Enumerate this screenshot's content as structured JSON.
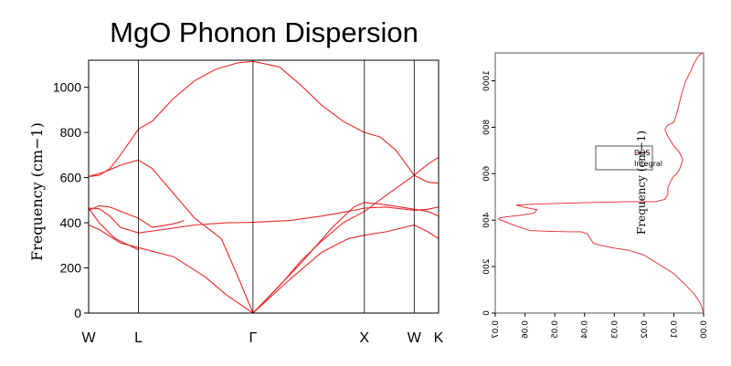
{
  "colors": {
    "line": "#e8262a",
    "axis": "#000000",
    "frame": "#555555"
  },
  "chart_data": [
    {
      "type": "line",
      "title": "MgO Phonon Dispersion",
      "ylabel": "Frequency (cm−1)",
      "xlabel": "",
      "ylim": [
        0,
        1120
      ],
      "yticks": [
        0,
        200,
        400,
        600,
        800,
        1000
      ],
      "ytick_labels": [
        "0",
        "200",
        "400",
        "600",
        "800",
        "1000"
      ],
      "xlim": [
        0,
        3.3
      ],
      "xticks": [
        {
          "pos": 0,
          "label": "W"
        },
        {
          "pos": 0.47,
          "label": "L"
        },
        {
          "pos": 1.55,
          "label": "Γ"
        },
        {
          "pos": 2.6,
          "label": "X"
        },
        {
          "pos": 3.07,
          "label": "W"
        },
        {
          "pos": 3.3,
          "label": "K"
        }
      ],
      "series": [
        {
          "x": [
            0,
            0.1,
            0.2,
            0.3,
            0.47
          ],
          "y": [
            605,
            610,
            640,
            700,
            815
          ]
        },
        {
          "x": [
            0.47,
            0.6,
            0.8,
            1.0,
            1.2,
            1.4,
            1.55
          ],
          "y": [
            815,
            850,
            950,
            1030,
            1080,
            1108,
            1115
          ]
        },
        {
          "x": [
            1.55,
            1.8,
            2.0,
            2.2,
            2.4,
            2.6
          ],
          "y": [
            1115,
            1090,
            1010,
            920,
            850,
            800
          ]
        },
        {
          "x": [
            2.6,
            2.75,
            2.9,
            3.07
          ],
          "y": [
            800,
            780,
            720,
            610
          ]
        },
        {
          "x": [
            3.07,
            3.2,
            3.3
          ],
          "y": [
            610,
            660,
            690
          ]
        },
        {
          "x": [
            0,
            0.15,
            0.3,
            0.47
          ],
          "y": [
            605,
            625,
            655,
            678
          ]
        },
        {
          "x": [
            0.47,
            0.6,
            0.8,
            1.0,
            1.25
          ],
          "y": [
            678,
            640,
            530,
            420,
            330
          ]
        },
        {
          "x": [
            1.25,
            1.4,
            1.55
          ],
          "y": [
            330,
            170,
            0
          ]
        },
        {
          "x": [
            1.55,
            1.8,
            2.0,
            2.2,
            2.4,
            2.6
          ],
          "y": [
            0,
            120,
            230,
            320,
            400,
            450
          ]
        },
        {
          "x": [
            2.6,
            2.8,
            3.07
          ],
          "y": [
            450,
            520,
            610
          ]
        },
        {
          "x": [
            3.07,
            3.2,
            3.3
          ],
          "y": [
            610,
            580,
            575
          ]
        },
        {
          "x": [
            0,
            0.1,
            0.2,
            0.3,
            0.47
          ],
          "y": [
            465,
            462,
            430,
            380,
            355
          ]
        },
        {
          "x": [
            0.47,
            0.7,
            1.0,
            1.3,
            1.55
          ],
          "y": [
            355,
            370,
            390,
            400,
            402
          ]
        },
        {
          "x": [
            1.55,
            1.9,
            2.2,
            2.5,
            2.6
          ],
          "y": [
            402,
            410,
            430,
            455,
            465
          ]
        },
        {
          "x": [
            2.6,
            2.8,
            3.07
          ],
          "y": [
            465,
            470,
            455
          ]
        },
        {
          "x": [
            3.07,
            3.2,
            3.3
          ],
          "y": [
            455,
            460,
            470
          ]
        },
        {
          "x": [
            0,
            0.1,
            0.2,
            0.47
          ],
          "y": [
            455,
            475,
            470,
            420
          ]
        },
        {
          "x": [
            0.47,
            0.6,
            0.8,
            0.9
          ],
          "y": [
            420,
            380,
            395,
            410
          ]
        },
        {
          "x": [
            1.55,
            2.0,
            2.3,
            2.5
          ],
          "y": [
            0,
            220,
            380,
            470
          ]
        },
        {
          "x": [
            2.5,
            2.6,
            2.8,
            3.07
          ],
          "y": [
            470,
            490,
            480,
            460
          ]
        },
        {
          "x": [
            3.07,
            3.2,
            3.3
          ],
          "y": [
            460,
            450,
            430
          ]
        },
        {
          "x": [
            0,
            0.1,
            0.2,
            0.3,
            0.47
          ],
          "y": [
            390,
            370,
            340,
            310,
            290
          ]
        },
        {
          "x": [
            0.47,
            0.8,
            1.1,
            1.3,
            1.55
          ],
          "y": [
            290,
            250,
            160,
            80,
            0
          ]
        },
        {
          "x": [
            1.55,
            1.9,
            2.2,
            2.45,
            2.6
          ],
          "y": [
            0,
            150,
            270,
            330,
            345
          ]
        },
        {
          "x": [
            2.6,
            2.8,
            3.07
          ],
          "y": [
            345,
            360,
            390
          ]
        },
        {
          "x": [
            3.07,
            3.2,
            3.3
          ],
          "y": [
            390,
            360,
            330
          ]
        },
        {
          "x": [
            0,
            0.1,
            0.25,
            0.47
          ],
          "y": [
            465,
            400,
            330,
            280
          ]
        }
      ]
    },
    {
      "type": "line",
      "xlabel": "",
      "ylabel": "Frequency (cm−1)",
      "xlim": [
        0,
        0.07
      ],
      "xtick_labels": [
        "0.00",
        "0.01",
        "0.02",
        "0.03",
        "0.04",
        "0.05",
        "0.06",
        "0.07"
      ],
      "ylim": [
        0,
        1120
      ],
      "ytick_labels": [
        "0",
        "200",
        "400",
        "600",
        "800",
        "1000"
      ],
      "legend": {
        "entries": [
          "DOS",
          "Integral"
        ],
        "placement": "center-right"
      },
      "series": [
        {
          "name": "DOS",
          "x": [
            0.0,
            0.001,
            0.003,
            0.006,
            0.01,
            0.015,
            0.02,
            0.025,
            0.03,
            0.034,
            0.037,
            0.038,
            0.039,
            0.041,
            0.045,
            0.052,
            0.058,
            0.062,
            0.064,
            0.066,
            0.068,
            0.069,
            0.0685,
            0.066,
            0.062,
            0.057,
            0.056,
            0.06,
            0.063,
            0.055,
            0.04,
            0.025,
            0.016,
            0.013,
            0.012,
            0.012,
            0.011,
            0.01,
            0.009,
            0.008,
            0.007,
            0.008,
            0.01,
            0.012,
            0.013,
            0.012,
            0.01,
            0.009,
            0.008,
            0.007,
            0.006,
            0.004,
            0.003,
            0.0015,
            0.0005,
            0.0
          ],
          "y": [
            0,
            40,
            80,
            120,
            170,
            210,
            250,
            270,
            280,
            290,
            300,
            320,
            340,
            350,
            350,
            352,
            355,
            370,
            380,
            390,
            400,
            405,
            410,
            415,
            420,
            430,
            445,
            455,
            465,
            470,
            475,
            480,
            480,
            490,
            510,
            540,
            570,
            590,
            600,
            620,
            660,
            690,
            720,
            760,
            790,
            810,
            820,
            860,
            910,
            960,
            1000,
            1050,
            1080,
            1110,
            1120,
            1120
          ]
        }
      ]
    }
  ]
}
